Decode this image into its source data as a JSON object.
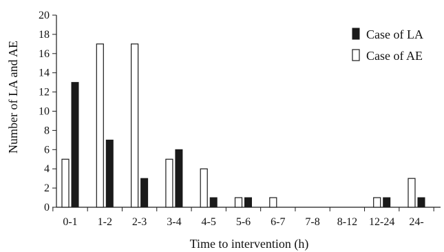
{
  "chart_data": {
    "type": "bar",
    "xlabel": "Time to intervention (h)",
    "ylabel": "Number of LA and AE",
    "ylim": [
      0,
      20
    ],
    "yticks": [
      0,
      2,
      4,
      6,
      8,
      10,
      12,
      14,
      16,
      18,
      20
    ],
    "categories": [
      "0-1",
      "1-2",
      "2-3",
      "3-4",
      "4-5",
      "5-6",
      "6-7",
      "7-8",
      "8-12",
      "12-24",
      "24-"
    ],
    "series": [
      {
        "name": "Case of AE",
        "values": [
          5,
          17,
          17,
          5,
          4,
          1,
          1,
          0,
          0,
          1,
          3
        ]
      },
      {
        "name": "Case of LA",
        "values": [
          13,
          7,
          3,
          6,
          1,
          1,
          0,
          0,
          0,
          1,
          1
        ]
      }
    ],
    "legend": {
      "position": "top-right",
      "entries": [
        "Case of LA",
        "Case of AE"
      ]
    },
    "colors": {
      "LA": "#1a1a1a",
      "AE": "#ffffff",
      "outline": "#1a1a1a"
    },
    "grid": false
  }
}
